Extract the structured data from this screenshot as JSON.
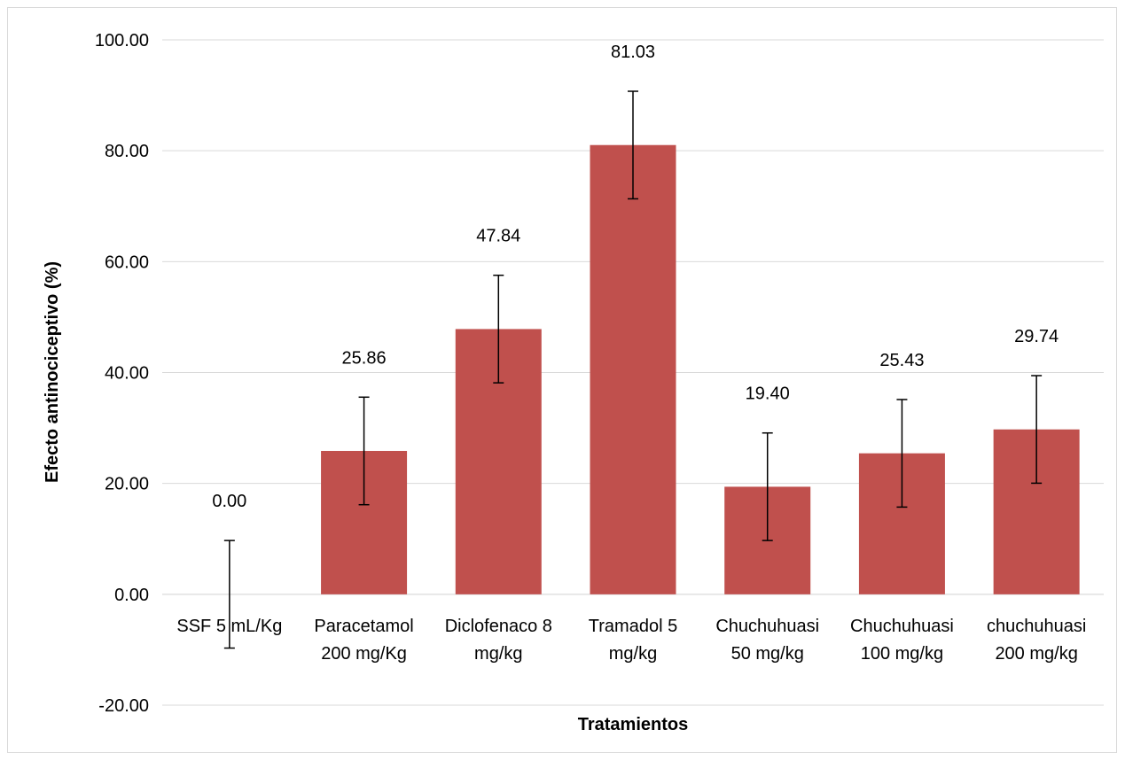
{
  "chart_data": {
    "type": "bar",
    "xlabel": "Tratamientos",
    "ylabel": "Efecto antinociceptivo (%)",
    "ylim": [
      -20,
      100
    ],
    "y_ticks": [
      "-20.00",
      "0.00",
      "20.00",
      "40.00",
      "60.00",
      "80.00",
      "100.00"
    ],
    "y_tick_values": [
      -20,
      0,
      20,
      40,
      60,
      80,
      100
    ],
    "grid": true,
    "legend": "none",
    "bar_color": "#c0504d",
    "categories": [
      [
        "SSF 5 mL/Kg"
      ],
      [
        "Paracetamol",
        "200 mg/Kg"
      ],
      [
        "Diclofenaco 8",
        "mg/kg"
      ],
      [
        "Tramadol 5",
        "mg/kg"
      ],
      [
        "Chuchuhuasi",
        "50 mg/kg"
      ],
      [
        "Chuchuhuasi",
        "100 mg/kg"
      ],
      [
        "chuchuhuasi",
        "200 mg/kg"
      ]
    ],
    "values": [
      0.0,
      25.86,
      47.84,
      81.03,
      19.4,
      25.43,
      29.74
    ],
    "value_labels": [
      "0.00",
      "25.86",
      "47.84",
      "81.03",
      "19.40",
      "25.43",
      "29.74"
    ],
    "error_bars": [
      9.7,
      9.7,
      9.7,
      9.7,
      9.7,
      9.7,
      9.7
    ]
  }
}
